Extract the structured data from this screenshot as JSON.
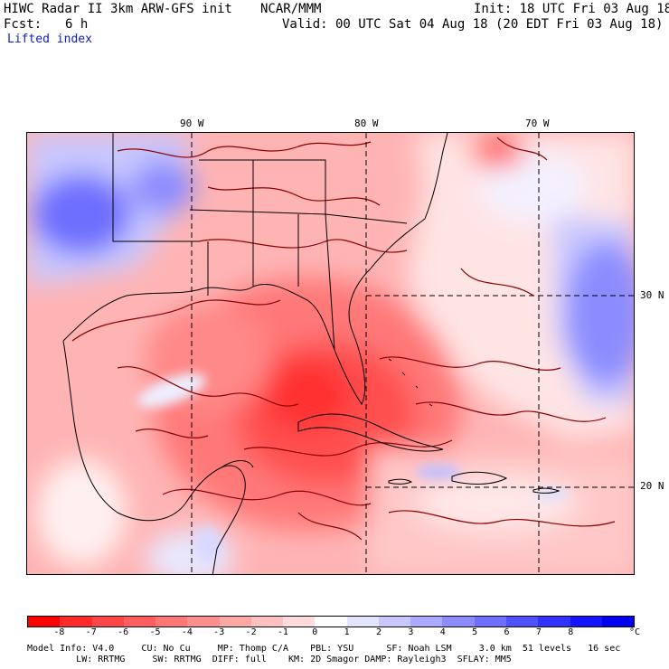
{
  "header": {
    "title": "HIWC Radar II 3km ARW-GFS init",
    "org": "NCAR/MMM",
    "init": "Init: 18 UTC Fri 03 Aug 18",
    "fcst_label": "Fcst:",
    "fcst_value": "6 h",
    "valid": "Valid: 00 UTC Sat 04 Aug 18 (20 EDT Fri 03 Aug 18)",
    "field": "Lifted index"
  },
  "axes": {
    "lon_labels": [
      "90 W",
      "80 W",
      "70 W"
    ],
    "lat_labels": [
      "30 N",
      "20 N"
    ]
  },
  "colorbar": {
    "unit": "°C",
    "labels": [
      "-8",
      "-7",
      "-6",
      "-5",
      "-4",
      "-3",
      "-2",
      "-1",
      "0",
      "1",
      "2",
      "3",
      "4",
      "5",
      "6",
      "7",
      "8"
    ],
    "colors": [
      "#ff0000",
      "#ff2a2a",
      "#ff4646",
      "#ff5e5e",
      "#ff7676",
      "#ff8e8e",
      "#ffa6a6",
      "#ffc0c0",
      "#ffdcdc",
      "#ffffff",
      "#e4e4ff",
      "#c8c8ff",
      "#aaaaff",
      "#8c8cff",
      "#6e6eff",
      "#5050ff",
      "#3232ff",
      "#1414ff",
      "#0000f0"
    ]
  },
  "footer": {
    "line1": "Model Info: V4.0     CU: No Cu     MP: Thomp C/A    PBL: YSU      SF: Noah LSM     3.0 km  51 levels   16 sec",
    "line2": "         LW: RRTMG     SW: RRTMG  DIFF: full    KM: 2D Smagor DAMP: Rayleigh3  SFLAY: MM5"
  }
}
